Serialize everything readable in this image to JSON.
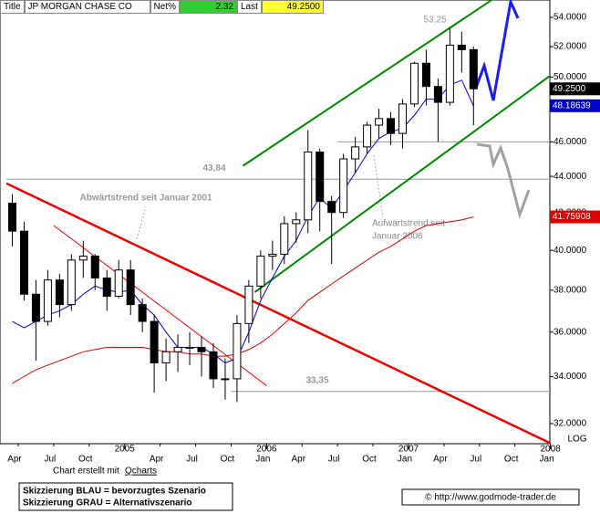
{
  "header": {
    "title_label": "Title",
    "name": "JP MORGAN CHASE CO",
    "net_label": "Net%",
    "net_value": "2.32",
    "last_label": "Last",
    "last_value": "49.2500"
  },
  "footer": {
    "credit": "Chart erstellt mit",
    "credit_link": "Qcharts",
    "legend_blue": "Skizzierung BLAU = bevorzugtes Szenario",
    "legend_gray": "Skizzierung GRAU = Alternativszenario",
    "copyright": "© http://www.godmode-trader.de"
  },
  "chart_data": {
    "type": "candlestick",
    "log": true,
    "scale_label": "LOG",
    "x": [
      "2004-03",
      "2004-04",
      "2004-05",
      "2004-06",
      "2004-07",
      "2004-08",
      "2004-09",
      "2004-10",
      "2004-11",
      "2004-12",
      "2005-01",
      "2005-02",
      "2005-03",
      "2005-04",
      "2005-05",
      "2005-06",
      "2005-07",
      "2005-08",
      "2005-09",
      "2005-10",
      "2005-11",
      "2005-12",
      "2006-01",
      "2006-02",
      "2006-03",
      "2006-04",
      "2006-05",
      "2006-06",
      "2006-07",
      "2006-08",
      "2006-09",
      "2006-10",
      "2006-11",
      "2006-12",
      "2007-01",
      "2007-02",
      "2007-03",
      "2007-04",
      "2007-05",
      "2007-06"
    ],
    "xlim": [
      "2004-03",
      "2008-02"
    ],
    "xticks": [
      {
        "value": "2004-04",
        "label": "Apr"
      },
      {
        "value": "2004-07",
        "label": "Jul"
      },
      {
        "value": "2004-10",
        "label": "Oct"
      },
      {
        "value": "2005-04",
        "label": "Apr"
      },
      {
        "value": "2005-07",
        "label": "Jul"
      },
      {
        "value": "2005-10",
        "label": "Oct"
      },
      {
        "value": "2006-01",
        "label": "Jan"
      },
      {
        "value": "2006-04",
        "label": "Apr"
      },
      {
        "value": "2006-07",
        "label": "Jul"
      },
      {
        "value": "2006-10",
        "label": "Oct"
      },
      {
        "value": "2007-01",
        "label": "Jan"
      },
      {
        "value": "2007-04",
        "label": "Apr"
      },
      {
        "value": "2007-07",
        "label": "Jul"
      },
      {
        "value": "2007-10",
        "label": "Oct"
      },
      {
        "value": "2008-01",
        "label": "Jan"
      }
    ],
    "year_labels": [
      {
        "value": "2005-01",
        "label": "2005"
      },
      {
        "value": "2006-01",
        "label": "2006"
      },
      {
        "value": "2007-01",
        "label": "2007"
      },
      {
        "value": "2008-01",
        "label": "2008"
      }
    ],
    "ylim": [
      31.18,
      55.22
    ],
    "yticks": [
      {
        "value": 32,
        "label": "32.0000"
      },
      {
        "value": 34,
        "label": "34.0000"
      },
      {
        "value": 36,
        "label": "36.0000"
      },
      {
        "value": 38,
        "label": "38.0000"
      },
      {
        "value": 40,
        "label": "40.0000"
      },
      {
        "value": 42,
        "label": "42.0000"
      },
      {
        "value": 44,
        "label": "44.0000"
      },
      {
        "value": 46,
        "label": "46.0000"
      },
      {
        "value": 48,
        "label": "48.0000"
      },
      {
        "value": 50,
        "label": "50.0000"
      },
      {
        "value": 52,
        "label": "52.0000"
      },
      {
        "value": 54,
        "label": "54.0000"
      }
    ],
    "price": {
      "color": "#000000",
      "last_label": "49.2500",
      "open": [
        42.5,
        41.0,
        37.8,
        36.5,
        38.5,
        37.3,
        39.5,
        39.7,
        38.6,
        37.7,
        39.0,
        37.3,
        36.5,
        34.6,
        35.1,
        35.3,
        35.3,
        35.1,
        33.9,
        33.9,
        36.4,
        38.2,
        39.7,
        39.8,
        41.4,
        41.6,
        45.4,
        42.6,
        42.0,
        45.0,
        45.7,
        47.0,
        47.4,
        46.5,
        48.3,
        50.9,
        49.4,
        48.4,
        52.1,
        51.8
      ],
      "high": [
        43.0,
        41.5,
        38.5,
        39.0,
        38.8,
        39.8,
        40.5,
        39.8,
        39.0,
        39.5,
        39.5,
        37.6,
        36.8,
        35.7,
        35.9,
        36.0,
        35.8,
        35.5,
        34.8,
        36.8,
        38.5,
        40.0,
        40.5,
        41.8,
        42.0,
        46.7,
        45.6,
        42.9,
        45.3,
        46.3,
        47.2,
        48.0,
        47.8,
        48.6,
        51.0,
        51.8,
        49.9,
        53.25,
        53.0,
        52.0
      ],
      "low": [
        40.2,
        37.5,
        34.7,
        36.3,
        36.7,
        37.0,
        38.6,
        38.0,
        37.0,
        37.6,
        36.8,
        36.0,
        33.3,
        33.8,
        34.2,
        34.5,
        34.0,
        33.5,
        33.0,
        32.9,
        35.5,
        37.6,
        39.0,
        39.3,
        40.4,
        40.9,
        41.0,
        39.3,
        41.7,
        44.2,
        45.3,
        46.2,
        45.8,
        45.6,
        48.1,
        48.2,
        46.0,
        48.2,
        50.3,
        47.0
      ],
      "close": [
        41.0,
        37.8,
        36.5,
        38.5,
        37.3,
        39.5,
        39.7,
        38.6,
        37.7,
        39.0,
        37.3,
        36.5,
        34.6,
        35.1,
        35.3,
        35.3,
        35.1,
        33.9,
        33.9,
        36.4,
        38.2,
        39.7,
        39.8,
        41.4,
        41.6,
        45.4,
        42.6,
        42.0,
        45.0,
        45.7,
        47.0,
        47.4,
        46.5,
        48.3,
        50.9,
        49.4,
        48.4,
        52.1,
        51.8,
        49.25
      ]
    },
    "series": [
      {
        "color": "#0000cc",
        "last_label": "48.18639",
        "values": [
          36.5,
          36.2,
          36.5,
          36.8,
          37.0,
          37.3,
          37.8,
          38.2,
          38.0,
          37.9,
          38.0,
          37.3,
          36.8,
          36.0,
          35.3,
          35.3,
          35.3,
          35.0,
          34.6,
          34.8,
          36.0,
          37.5,
          38.6,
          39.7,
          40.5,
          41.8,
          42.8,
          42.2,
          43.2,
          44.2,
          45.3,
          46.2,
          46.6,
          46.8,
          47.6,
          48.6,
          48.6,
          49.5,
          49.8,
          48.18639
        ]
      },
      {
        "color": "#dd0000",
        "last_label": "41.75908",
        "values": [
          33.7,
          34.0,
          34.3,
          34.5,
          34.7,
          34.9,
          35.1,
          35.2,
          35.3,
          35.3,
          35.3,
          35.3,
          35.2,
          35.1,
          35.1,
          35.0,
          35.0,
          34.9,
          34.9,
          35.0,
          35.2,
          35.5,
          35.9,
          36.4,
          36.9,
          37.5,
          37.9,
          38.3,
          38.7,
          39.1,
          39.5,
          39.9,
          40.2,
          40.6,
          41.0,
          41.3,
          41.4,
          41.5,
          41.6,
          41.75908
        ]
      }
    ],
    "trendlines": [
      {
        "color": "#008800",
        "points": [
          [
            "2005-11",
            44.6
          ],
          [
            "2007-08",
            55.2
          ]
        ]
      },
      {
        "color": "#008800",
        "points": [
          [
            "2005-12",
            37.9
          ],
          [
            "2008-01",
            50.1
          ]
        ]
      },
      {
        "color": "#ee0000",
        "points": [
          [
            "2004-03",
            43.6
          ],
          [
            "2008-01",
            31.2
          ]
        ]
      },
      {
        "color": "#ee0000",
        "points": [
          [
            "2004-07",
            41.3
          ],
          [
            "2006-01",
            33.6
          ]
        ]
      }
    ],
    "hlines": [
      {
        "value": 43.84,
        "label": "43,84",
        "from": "2004-03"
      },
      {
        "value": 33.35,
        "label": "33,35",
        "from": "2005-10"
      },
      {
        "value": 46,
        "from": "2006-07"
      }
    ],
    "annotations": [
      "53,25",
      "Abwärtstrend seit Januar 2001",
      "Aufwärtstrend seit",
      "Januar 2006"
    ]
  }
}
